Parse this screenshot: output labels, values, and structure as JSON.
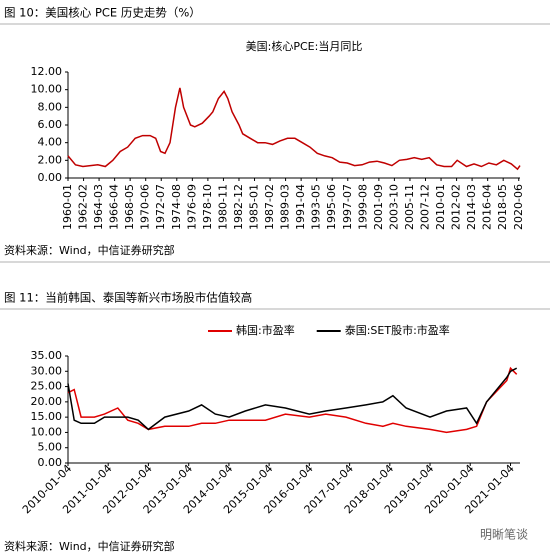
{
  "document": {
    "caption1": "图 10：美国核心 PCE 历史走势（%）",
    "source1": "资料来源：Wind，中信证券研究部",
    "caption2": "图 11：当前韩国、泰国等新兴市场股市估值较高",
    "source2": "资料来源：Wind，中信证券研究部",
    "watermark": "明晰笔谈"
  },
  "chart_data": [
    {
      "type": "line",
      "title": "美国:核心PCE:当月同比",
      "color": "#c00000",
      "x": [
        "1960-01",
        "1961-01",
        "1962-01",
        "1963-01",
        "1964-01",
        "1965-01",
        "1966-01",
        "1967-01",
        "1968-01",
        "1969-01",
        "1970-01",
        "1971-01",
        "1971-10",
        "1972-06",
        "1973-01",
        "1973-09",
        "1974-06",
        "1975-01",
        "1975-07",
        "1976-06",
        "1977-01",
        "1978-01",
        "1978-12",
        "1979-06",
        "1980-03",
        "1980-12",
        "1981-06",
        "1982-01",
        "1982-12",
        "1983-06",
        "1984-06",
        "1985-06",
        "1986-06",
        "1987-06",
        "1988-06",
        "1989-06",
        "1990-06",
        "1991-06",
        "1992-06",
        "1993-06",
        "1994-06",
        "1995-06",
        "1996-06",
        "1997-06",
        "1998-06",
        "1999-06",
        "2000-06",
        "2001-06",
        "2002-06",
        "2003-06",
        "2004-06",
        "2005-06",
        "2006-06",
        "2007-06",
        "2008-06",
        "2009-06",
        "2010-06",
        "2011-06",
        "2012-03",
        "2013-06",
        "2014-06",
        "2015-06",
        "2016-06",
        "2017-06",
        "2018-06",
        "2019-06",
        "2020-04",
        "2020-08"
      ],
      "values": [
        2.5,
        1.5,
        1.3,
        1.4,
        1.5,
        1.3,
        2.0,
        3.0,
        3.5,
        4.5,
        4.8,
        4.8,
        4.5,
        3.0,
        2.8,
        4.0,
        8.0,
        10.2,
        8.0,
        6.0,
        5.8,
        6.2,
        7.0,
        7.5,
        9.0,
        9.8,
        9.0,
        7.5,
        6.0,
        5.0,
        4.5,
        4.0,
        4.0,
        3.8,
        4.2,
        4.5,
        4.5,
        4.0,
        3.5,
        2.8,
        2.5,
        2.3,
        1.8,
        1.7,
        1.4,
        1.5,
        1.8,
        1.9,
        1.7,
        1.4,
        2.0,
        2.1,
        2.3,
        2.1,
        2.3,
        1.5,
        1.3,
        1.3,
        2.0,
        1.3,
        1.6,
        1.3,
        1.7,
        1.5,
        2.0,
        1.6,
        1.0,
        1.4
      ],
      "xlim": [
        "1960-01",
        "2020-08"
      ],
      "xticks": [
        "1960-01",
        "1962-02",
        "1964-03",
        "1966-04",
        "1968-05",
        "1970-06",
        "1972-07",
        "1974-08",
        "1976-09",
        "1978-10",
        "1980-11",
        "1982-12",
        "1985-01",
        "1987-02",
        "1989-03",
        "1991-04",
        "1993-05",
        "1995-06",
        "1997-07",
        "1999-08",
        "2001-09",
        "2003-10",
        "2005-11",
        "2007-12",
        "2010-01",
        "2012-02",
        "2014-03",
        "2016-04",
        "2018-05",
        "2020-06"
      ],
      "ylim": [
        0,
        12
      ],
      "yticks": [
        {
          "value": 0,
          "label": "0.00"
        },
        {
          "value": 2,
          "label": "2.00"
        },
        {
          "value": 4,
          "label": "4.00"
        },
        {
          "value": 6,
          "label": "6.00"
        },
        {
          "value": 8,
          "label": "8.00"
        },
        {
          "value": 10,
          "label": "10.00"
        },
        {
          "value": 12,
          "label": "12.00"
        }
      ],
      "x_label_rotation": -90
    },
    {
      "type": "line",
      "legend": "top",
      "x": [
        "2010-01-04",
        "2010-03-01",
        "2010-05-03",
        "2010-09-01",
        "2010-12-01",
        "2011-04-01",
        "2011-07-01",
        "2011-10-03",
        "2012-01-04",
        "2012-06-01",
        "2013-01-04",
        "2013-05-01",
        "2013-09-02",
        "2014-01-06",
        "2014-06-02",
        "2014-12-01",
        "2015-06-01",
        "2016-01-04",
        "2016-06-01",
        "2016-12-01",
        "2017-06-01",
        "2017-11-01",
        "2018-02-01",
        "2018-06-01",
        "2019-01-04",
        "2019-06-03",
        "2019-12-02",
        "2020-03-02",
        "2020-06-01",
        "2020-12-01",
        "2021-01-04",
        "2021-03-01"
      ],
      "series": [
        {
          "name": "韩国:市盈率",
          "color": "#e00000",
          "values": [
            23,
            24,
            15,
            15,
            16,
            18,
            14,
            13,
            11,
            12,
            12,
            13,
            13,
            14,
            14,
            14,
            16,
            15,
            16,
            15,
            13,
            12,
            13,
            12,
            11,
            10,
            11,
            12,
            20,
            27,
            31,
            29
          ]
        },
        {
          "name": "泰国:SET股市:市盈率",
          "color": "#000000",
          "values": [
            26,
            14,
            13,
            13,
            15,
            15,
            15,
            14,
            11,
            15,
            17,
            19,
            16,
            15,
            17,
            19,
            18,
            16,
            17,
            18,
            19,
            20,
            22,
            18,
            15,
            17,
            18,
            13,
            20,
            28,
            30,
            31
          ]
        }
      ],
      "xlim": [
        "2010-01-04",
        "2021-03-31"
      ],
      "xticks": [
        "2010-01-04",
        "2011-01-04",
        "2012-01-04",
        "2013-01-04",
        "2014-01-04",
        "2015-01-04",
        "2016-01-04",
        "2017-01-04",
        "2018-01-04",
        "2019-01-04",
        "2020-01-04",
        "2021-01-04"
      ],
      "ylim": [
        0,
        35
      ],
      "yticks": [
        {
          "value": 0,
          "label": "0.00"
        },
        {
          "value": 5,
          "label": "5.00"
        },
        {
          "value": 10,
          "label": "10.00"
        },
        {
          "value": 15,
          "label": "15.00"
        },
        {
          "value": 20,
          "label": "20.00"
        },
        {
          "value": 25,
          "label": "25.00"
        },
        {
          "value": 30,
          "label": "30.00"
        },
        {
          "value": 35,
          "label": "35.00"
        }
      ],
      "x_label_rotation": -45
    }
  ]
}
